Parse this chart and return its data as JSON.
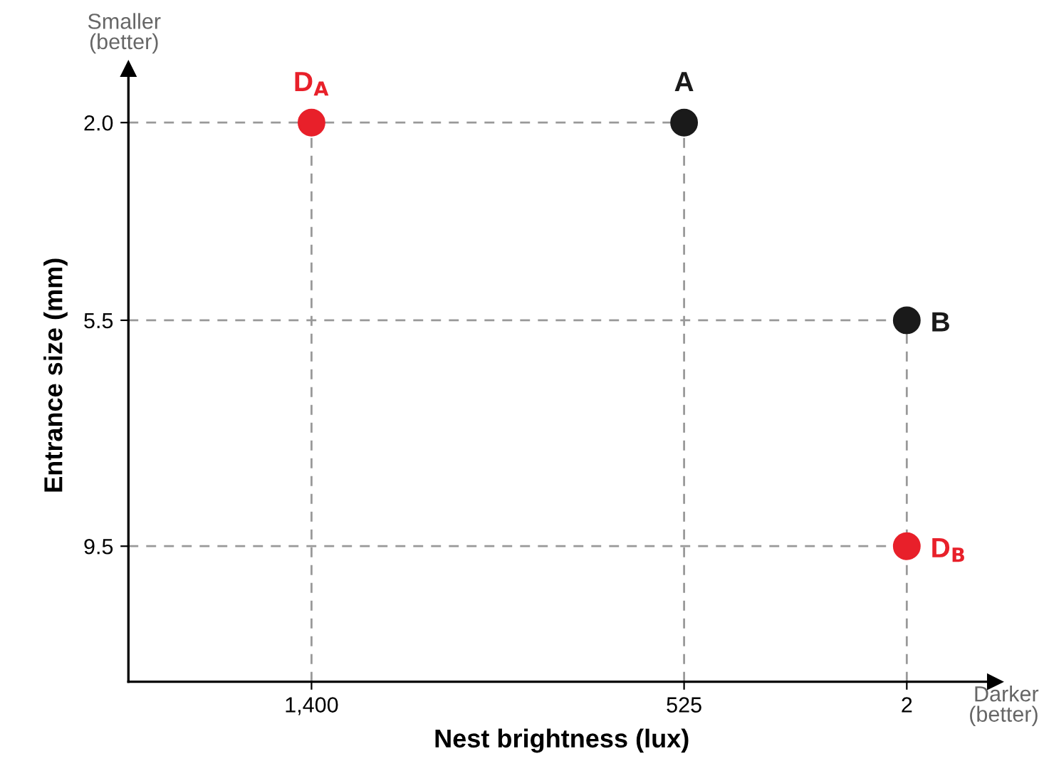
{
  "chart_data": {
    "type": "scatter",
    "xlabel": "Nest brightness (lux)",
    "ylabel": "Entrance size (mm)",
    "series": [
      {
        "color": "#1a1a1a",
        "x": [
          525,
          2
        ],
        "values": [
          2.0,
          5.5
        ]
      },
      {
        "color": "#e8202a",
        "x": [
          1400,
          2
        ],
        "values": [
          2.0,
          9.5
        ]
      }
    ],
    "annotations": [
      "Smaller\n(better)",
      "Darker\n(better)",
      {
        "text": "A",
        "x": 525,
        "y": 2.0
      },
      {
        "text": "B",
        "x": 2,
        "y": 5.5
      },
      {
        "text": "D$_{A}$",
        "x": 1400,
        "y": 2.0
      },
      {
        "text": "D$_{B}$",
        "x": 2,
        "y": 9.5
      }
    ],
    "xlim": [
      1830,
      -205
    ],
    "ylim": [
      11.9,
      1.05
    ],
    "xticks": [
      {
        "value": 1400,
        "label": "1,400"
      },
      525,
      2
    ],
    "yticks": [
      {
        "value": 2.0,
        "label": "2.0"
      },
      {
        "value": 5.5,
        "label": "5.5"
      },
      {
        "value": 9.5,
        "label": "9.5"
      }
    ],
    "ref_lines": [
      {
        "axis": "y",
        "value": 2.0,
        "label": null,
        "color": "#999999",
        "line_style": "dashed"
      },
      {
        "axis": "y",
        "value": 5.5,
        "label": null,
        "color": "#999999",
        "line_style": "dashed"
      },
      {
        "axis": "y",
        "value": 9.5,
        "label": null,
        "color": "#999999",
        "line_style": "dashed"
      },
      {
        "axis": "x",
        "value": 1400,
        "label": null,
        "color": "#999999",
        "line_style": "dashed"
      },
      {
        "axis": "x",
        "value": 525,
        "label": null,
        "color": "#999999",
        "line_style": "dashed"
      },
      {
        "axis": "x",
        "value": 2,
        "label": null,
        "color": "#999999",
        "line_style": "dashed"
      }
    ],
    "marker": "circle",
    "grid": false,
    "legend": false
  }
}
